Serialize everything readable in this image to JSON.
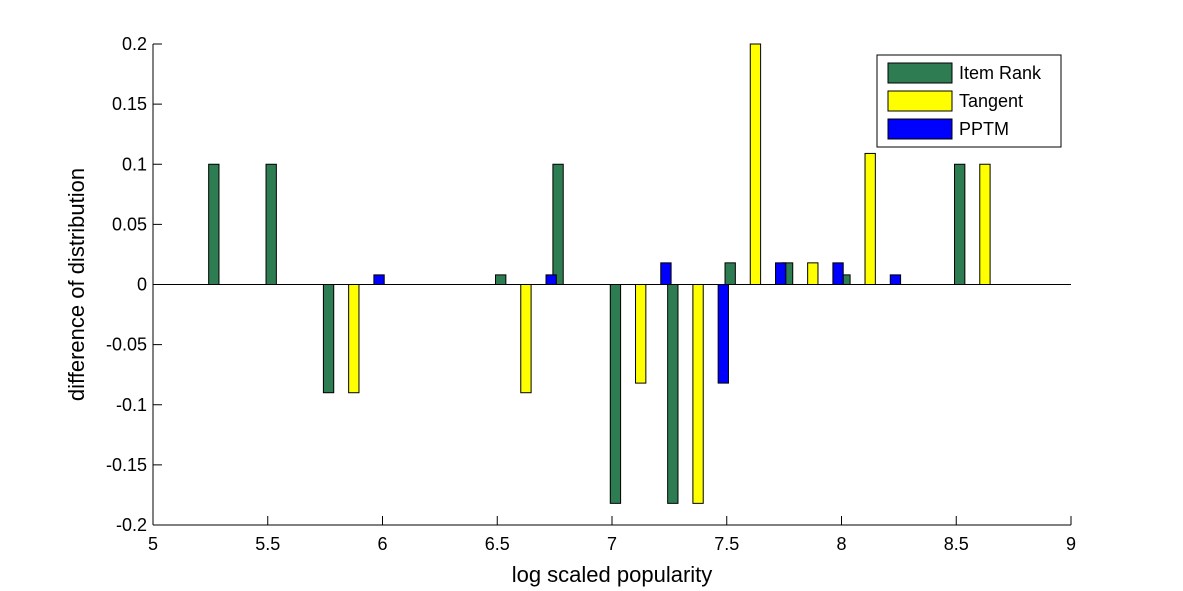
{
  "chart_data": {
    "type": "bar",
    "title": "",
    "xlabel": "log scaled popularity",
    "ylabel": "difference of distribution",
    "xlim": [
      5,
      9
    ],
    "ylim": [
      -0.2,
      0.2
    ],
    "grid": false,
    "legend_position": "top-right",
    "x_ticks": [
      "5",
      "5.5",
      "6",
      "6.5",
      "7",
      "7.5",
      "8",
      "8.5",
      "9"
    ],
    "y_ticks": [
      "-0.2",
      "-0.15",
      "-0.1",
      "-0.05",
      "0",
      "0.05",
      "0.1",
      "0.15",
      "0.2"
    ],
    "x": [
      5.375,
      5.625,
      5.875,
      6.625,
      6.875,
      7.125,
      7.375,
      7.625,
      7.875,
      8.125,
      8.625
    ],
    "series": [
      {
        "name": "Item Rank",
        "color": "#2e7d52",
        "values": [
          0.1,
          0.1,
          -0.09,
          0.008,
          0.1,
          -0.182,
          -0.182,
          0.018,
          0.018,
          0.008,
          0.1
        ]
      },
      {
        "name": "Tangent",
        "color": "#ffff00",
        "values": [
          0,
          0,
          -0.09,
          -0.09,
          0,
          -0.082,
          -0.182,
          0.2,
          0.018,
          0.109,
          0.1
        ]
      },
      {
        "name": "PPTM",
        "color": "#0000ff",
        "values": [
          0,
          0,
          0.008,
          0.008,
          0,
          0.018,
          -0.082,
          0.018,
          0.018,
          0.008,
          0
        ]
      }
    ]
  }
}
